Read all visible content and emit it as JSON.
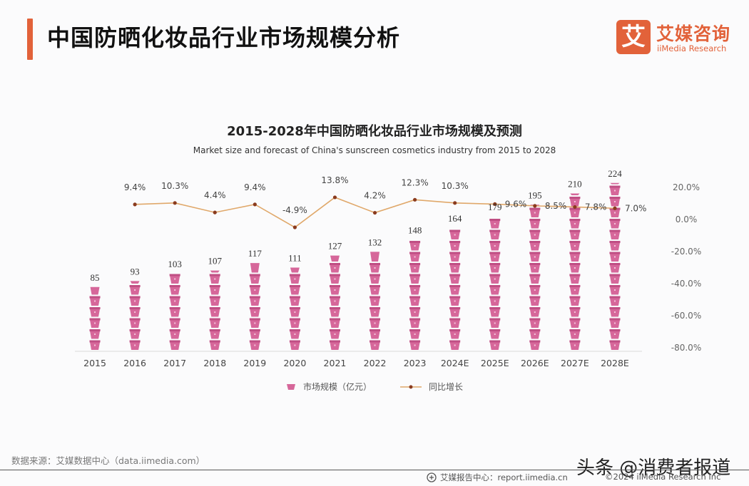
{
  "header": {
    "title": "中国防晒化妆品行业市场规模分析",
    "accent_color": "#e2623a"
  },
  "logo": {
    "mark": "艾",
    "name_cn": "艾媒咨询",
    "name_en": "iiMedia Research"
  },
  "chart_data": {
    "type": "bar",
    "title": "2015-2028年中国防晒化妆品行业市场规模及预测",
    "subtitle": "Market size and forecast of China's sunscreen cosmetics industry from 2015 to 2028",
    "categories": [
      "2015",
      "2016",
      "2017",
      "2018",
      "2019",
      "2020",
      "2021",
      "2022",
      "2023",
      "2024E",
      "2025E",
      "2026E",
      "2027E",
      "2028E"
    ],
    "series": [
      {
        "name": "市场规模（亿元）",
        "type": "bar",
        "axis": "left",
        "color": "#d6679a",
        "values": [
          85,
          93,
          103,
          107,
          117,
          111,
          127,
          132,
          148,
          164,
          179,
          195,
          210,
          224
        ],
        "labels": [
          "85",
          "93",
          "103",
          "107",
          "117",
          "111",
          "127",
          "132",
          "148",
          "164",
          "179",
          "195",
          "210",
          "224"
        ]
      },
      {
        "name": "同比增长",
        "type": "line",
        "axis": "right",
        "color": "#e0a86a",
        "marker_color": "#8a3b1e",
        "values": [
          9.4,
          10.3,
          4.4,
          9.4,
          -4.9,
          13.8,
          4.2,
          12.3,
          10.3,
          9.6,
          8.5,
          7.8,
          7.0
        ],
        "categories": [
          "2016",
          "2017",
          "2018",
          "2019",
          "2020",
          "2021",
          "2022",
          "2023",
          "2024E",
          "2025E",
          "2026E",
          "2027E",
          "2028E"
        ],
        "labels": [
          "9.4%",
          "10.3%",
          "4.4%",
          "9.4%",
          "-4.9%",
          "13.8%",
          "4.2%",
          "12.3%",
          "10.3%",
          "9.6%",
          "8.5%",
          "7.8%",
          "7.0%"
        ]
      }
    ],
    "y_right": {
      "ticks": [
        "20.0%",
        "0.0%",
        "-20.0%",
        "-40.0%",
        "-60.0%",
        "-80.0%"
      ],
      "range": [
        -80,
        20
      ]
    },
    "y_left_range": [
      0,
      240
    ],
    "grid": false,
    "legend_position": "bottom"
  },
  "legend": {
    "bar_label": "市场规模（亿元）",
    "line_label": "同比增长"
  },
  "footer": {
    "source": "数据来源：艾媒数据中心（data.iimedia.com）",
    "report": "艾媒报告中心：report.iimedia.cn",
    "copyright": "©2024 iiMedia Research Inc",
    "watermark": "头条 @消费者报道"
  }
}
